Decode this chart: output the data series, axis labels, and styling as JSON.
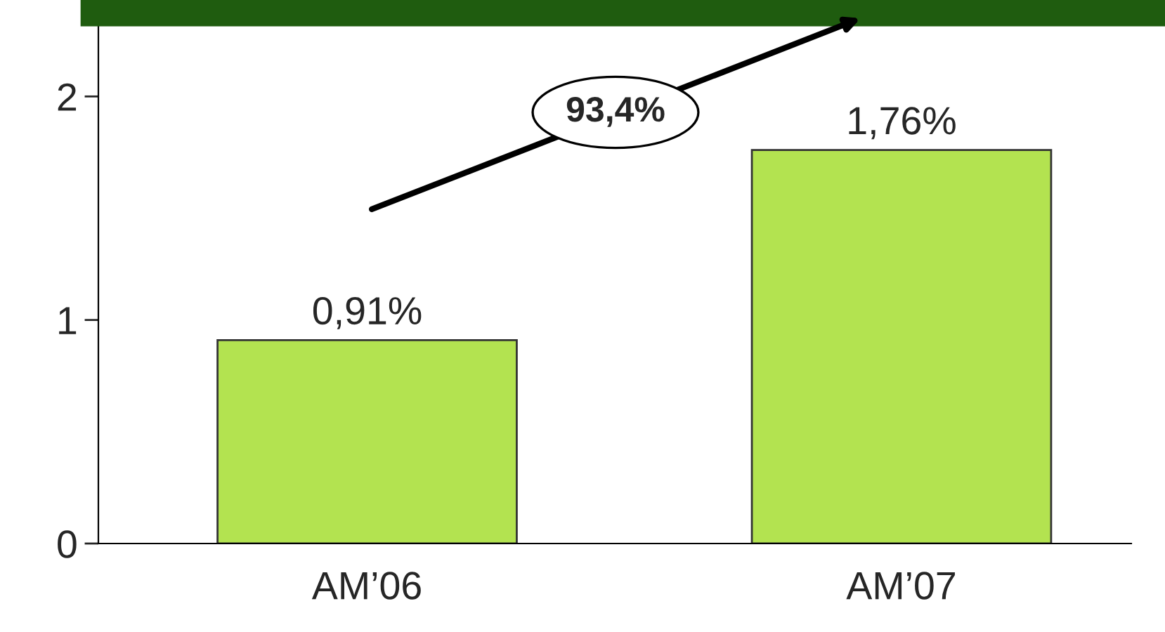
{
  "chart_data": {
    "type": "bar",
    "categories": [
      "AM’06",
      "AM’07"
    ],
    "values": [
      0.91,
      1.76
    ],
    "value_labels": [
      "0,91%",
      "1,76%"
    ],
    "color": "#b3e350",
    "ylim": [
      0,
      2.4
    ],
    "yticks": [
      0,
      1,
      2
    ],
    "grid": false,
    "annotations": [
      "93,4%"
    ]
  }
}
